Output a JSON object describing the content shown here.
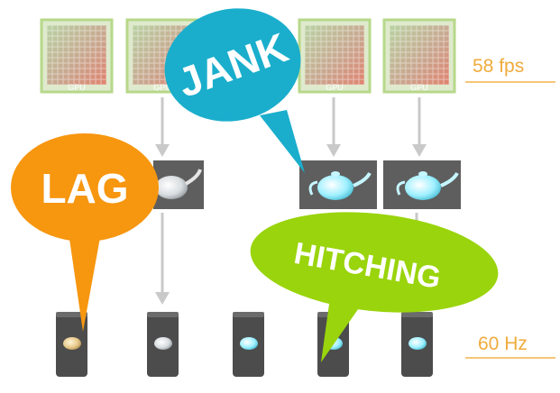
{
  "gpu_label": "GPU",
  "rates": {
    "gpu_fps": "58 fps",
    "display_hz": "60 Hz"
  },
  "bubbles": {
    "jank": "JANK",
    "lag": "LAG",
    "hitching": "HITCHING"
  },
  "colors": {
    "jank_bubble": "#1aaecc",
    "lag_bubble": "#f7960f",
    "hitching_bubble": "#9ad40c",
    "rate_text": "#f0ab3c",
    "rate_line": "#f5c677",
    "arrow": "#c9c9c9",
    "frame_box": "#5e5e5e",
    "phone_body": "#4c4c4c",
    "teapot_highlight": "#9ff0ff"
  },
  "icons": {
    "gpu": "gpu-chip-icon",
    "frame": "teapot-frame-icon",
    "phone": "phone-icon"
  }
}
